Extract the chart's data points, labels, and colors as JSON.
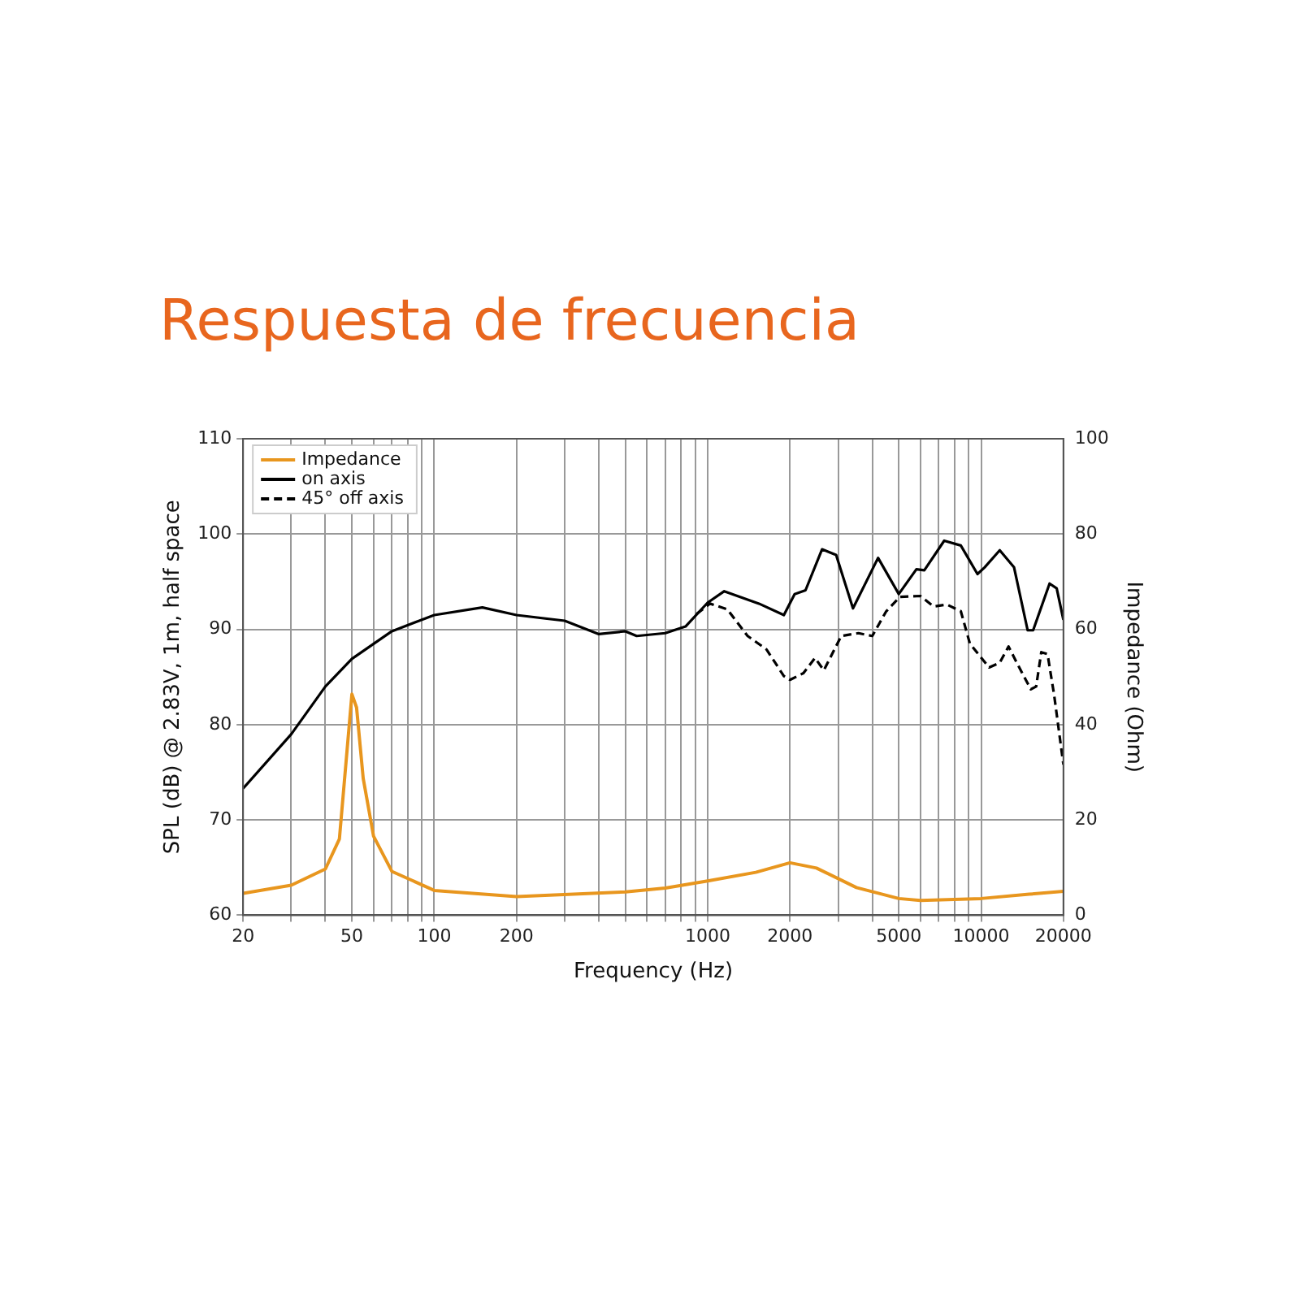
{
  "chart_data": {
    "type": "line",
    "title": "Respuesta de frecuencia",
    "xlabel": "Frequency (Hz)",
    "ylabel": "SPL (dB) @ 2.83V, 1m, half space",
    "y2label": "Impedance (Ohm)",
    "log": "x",
    "grid": true,
    "legend": "top left",
    "marker": "none",
    "xlim": [
      20,
      20000
    ],
    "xticks": [
      20,
      {
        "value": 30,
        "label": null
      },
      {
        "value": 40,
        "label": null
      },
      50,
      {
        "value": 60,
        "label": null
      },
      {
        "value": 70,
        "label": null
      },
      {
        "value": 80,
        "label": null
      },
      {
        "value": 90,
        "label": null
      },
      100,
      200,
      {
        "value": 300,
        "label": null
      },
      {
        "value": 400,
        "label": null
      },
      {
        "value": 500,
        "label": null
      },
      {
        "value": 600,
        "label": null
      },
      {
        "value": 700,
        "label": null
      },
      {
        "value": 800,
        "label": null
      },
      {
        "value": 900,
        "label": null
      },
      1000,
      2000,
      {
        "value": 3000,
        "label": null
      },
      {
        "value": 4000,
        "label": null
      },
      5000,
      {
        "value": 6000,
        "label": null
      },
      {
        "value": 7000,
        "label": null
      },
      {
        "value": 8000,
        "label": null
      },
      {
        "value": 9000,
        "label": null
      },
      10000,
      20000
    ],
    "ylim": [
      60,
      110
    ],
    "yticks": [
      60,
      70,
      80,
      90,
      100,
      110
    ],
    "y2lim": [
      0,
      100
    ],
    "y2ticks": [
      0,
      20,
      40,
      60,
      80,
      100
    ],
    "series": [
      {
        "name": "Impedance",
        "color": "#e8961e",
        "axis": "y2",
        "line_style": "solid",
        "x": [
          20,
          30,
          40,
          45,
          50,
          52,
          55,
          60,
          70,
          100,
          200,
          500,
          700,
          1000,
          1500,
          2000,
          2500,
          3500,
          5000,
          6000,
          10000,
          15000,
          20000
        ],
        "values": [
          4.6,
          6.3,
          9.7,
          16,
          46.4,
          43.6,
          28.7,
          16.6,
          9.2,
          5.2,
          3.9,
          4.9,
          5.7,
          7.2,
          9,
          11,
          9.9,
          5.8,
          3.5,
          3.1,
          3.5,
          4.4,
          5
        ]
      },
      {
        "name": "on axis",
        "color": "#000000",
        "line_style": "solid",
        "x": [
          20,
          30,
          40,
          50,
          70,
          100,
          150,
          200,
          300,
          400,
          500,
          550,
          700,
          830,
          1000,
          1150,
          1540,
          1900,
          2080,
          2280,
          2620,
          2950,
          3400,
          4200,
          5000,
          5800,
          6200,
          7330,
          8430,
          9700,
          10300,
          11700,
          13200,
          14800,
          15500,
          17800,
          18900,
          20000
        ],
        "values": [
          73.3,
          79,
          84,
          86.9,
          89.8,
          91.5,
          92.3,
          91.5,
          90.9,
          89.5,
          89.8,
          89.3,
          89.6,
          90.3,
          92.8,
          94,
          92.7,
          91.5,
          93.7,
          94.1,
          98.4,
          97.8,
          92.2,
          97.5,
          93.7,
          96.3,
          96.2,
          99.3,
          98.8,
          95.8,
          96.5,
          98.3,
          96.5,
          89.9,
          89.9,
          94.8,
          94.3,
          91
        ]
      },
      {
        "name": "45° off axis",
        "color": "#000000",
        "line_style": "dashed",
        "x": [
          910,
          1020,
          1180,
          1400,
          1640,
          1900,
          2000,
          2240,
          2470,
          2660,
          3080,
          3560,
          4000,
          4500,
          5050,
          6000,
          6700,
          7500,
          8430,
          9100,
          10700,
          11700,
          12600,
          13500,
          15200,
          15900,
          16600,
          17500,
          18500,
          20000
        ],
        "values": [
          91.6,
          92.7,
          92.1,
          89.3,
          87.9,
          85.1,
          84.7,
          85.4,
          87,
          85.7,
          89.3,
          89.6,
          89.3,
          91.9,
          93.4,
          93.5,
          92.4,
          92.6,
          91.9,
          88.5,
          86,
          86.5,
          88.2,
          86.5,
          83.7,
          84,
          87.6,
          87.4,
          83.1,
          75.8
        ]
      }
    ]
  }
}
